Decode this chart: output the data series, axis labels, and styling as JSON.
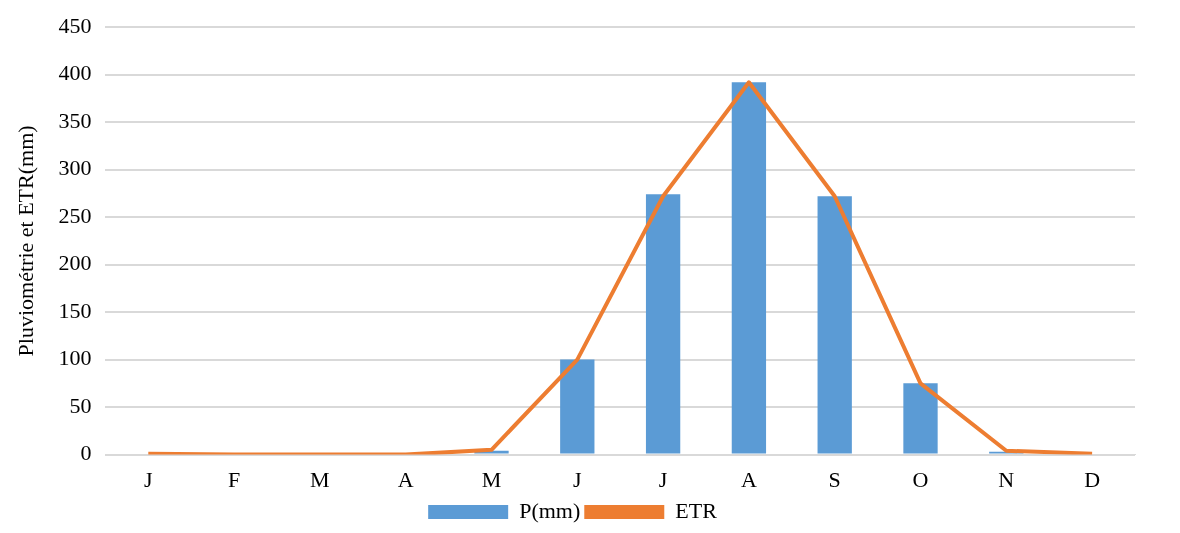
{
  "chart_data": {
    "type": "bar",
    "ylabel": "Pluviométrie et ETR(mm)",
    "categories": [
      "J",
      "F",
      "M",
      "A",
      "M",
      "J",
      "J",
      "A",
      "S",
      "O",
      "N",
      "D"
    ],
    "series": [
      {
        "name": "P(mm)",
        "color": "#5b9bd5",
        "values": [
          0,
          0,
          0,
          0,
          4,
          100,
          274,
          392,
          272,
          75,
          3,
          0
        ]
      },
      {
        "name": "ETR",
        "type": "line",
        "color": "#ed7d31",
        "values": [
          1,
          0,
          0,
          0,
          5,
          100,
          272,
          392,
          272,
          75,
          4,
          1
        ]
      }
    ],
    "ylim": [
      0,
      450
    ],
    "yticks": [
      0,
      50,
      100,
      150,
      200,
      250,
      300,
      350,
      400,
      450
    ],
    "grid": "y",
    "legend": "bottom",
    "marker": "none"
  }
}
